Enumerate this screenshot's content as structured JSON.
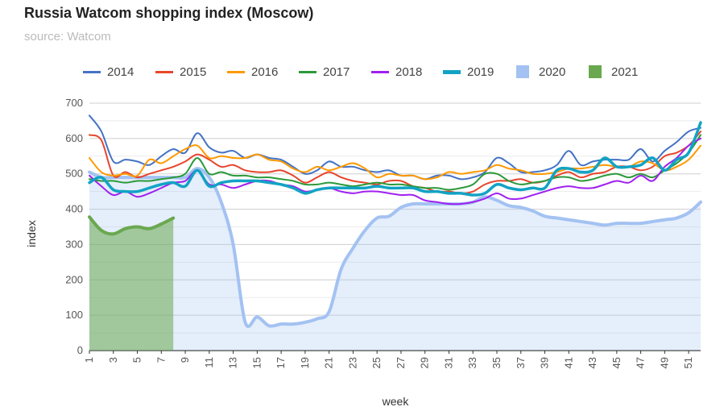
{
  "chart_data": {
    "type": "line",
    "title": "Russia Watcom shopping index (Moscow)",
    "subtitle": "source: Watcom",
    "xlabel": "week",
    "ylabel": "index",
    "xlim": [
      1,
      52
    ],
    "ylim": [
      0,
      700
    ],
    "yticks": [
      0,
      100,
      200,
      300,
      400,
      500,
      600,
      700
    ],
    "xticks": [
      1,
      3,
      5,
      7,
      9,
      11,
      13,
      15,
      17,
      19,
      21,
      23,
      25,
      27,
      29,
      31,
      33,
      35,
      37,
      39,
      41,
      43,
      45,
      47,
      49,
      51
    ],
    "grid": true,
    "legend_position": "top",
    "series": [
      {
        "name": "2014",
        "color": "#4472c4",
        "style": "line",
        "x": [
          1,
          2,
          3,
          4,
          5,
          6,
          7,
          8,
          9,
          10,
          11,
          12,
          13,
          14,
          15,
          16,
          17,
          18,
          19,
          20,
          21,
          22,
          23,
          24,
          25,
          26,
          27,
          28,
          29,
          30,
          31,
          32,
          33,
          34,
          35,
          36,
          37,
          38,
          39,
          40,
          41,
          42,
          43,
          44,
          45,
          46,
          47,
          48,
          49,
          50,
          51,
          52
        ],
        "y": [
          665,
          620,
          535,
          540,
          535,
          525,
          550,
          570,
          560,
          615,
          575,
          560,
          565,
          545,
          555,
          545,
          540,
          520,
          500,
          510,
          535,
          520,
          520,
          510,
          505,
          510,
          495,
          495,
          485,
          495,
          495,
          485,
          490,
          505,
          545,
          530,
          505,
          505,
          510,
          525,
          565,
          525,
          535,
          540,
          540,
          540,
          570,
          535,
          565,
          590,
          620,
          630
        ]
      },
      {
        "name": "2015",
        "color": "#e8452c",
        "style": "line",
        "x": [
          1,
          2,
          3,
          4,
          5,
          6,
          7,
          8,
          9,
          10,
          11,
          12,
          13,
          14,
          15,
          16,
          17,
          18,
          19,
          20,
          21,
          22,
          23,
          24,
          25,
          26,
          27,
          28,
          29,
          30,
          31,
          32,
          33,
          34,
          35,
          36,
          37,
          38,
          39,
          40,
          41,
          42,
          43,
          44,
          45,
          46,
          47,
          48,
          49,
          50,
          51,
          52
        ],
        "y": [
          610,
          595,
          495,
          505,
          490,
          500,
          510,
          520,
          535,
          555,
          540,
          520,
          525,
          510,
          505,
          505,
          510,
          495,
          475,
          490,
          505,
          490,
          480,
          475,
          470,
          480,
          480,
          465,
          460,
          450,
          450,
          445,
          450,
          470,
          480,
          480,
          485,
          475,
          480,
          495,
          505,
          490,
          500,
          505,
          520,
          520,
          510,
          520,
          550,
          560,
          580,
          620
        ]
      },
      {
        "name": "2016",
        "color": "#ff9900",
        "style": "line",
        "x": [
          1,
          2,
          3,
          4,
          5,
          6,
          7,
          8,
          9,
          10,
          11,
          12,
          13,
          14,
          15,
          16,
          17,
          18,
          19,
          20,
          21,
          22,
          23,
          24,
          25,
          26,
          27,
          28,
          29,
          30,
          31,
          32,
          33,
          34,
          35,
          36,
          37,
          38,
          39,
          40,
          41,
          42,
          43,
          44,
          45,
          46,
          47,
          48,
          49,
          50,
          51,
          52
        ],
        "y": [
          545,
          505,
          495,
          500,
          495,
          540,
          530,
          550,
          570,
          580,
          545,
          550,
          545,
          545,
          555,
          540,
          535,
          515,
          505,
          520,
          510,
          520,
          530,
          515,
          490,
          500,
          495,
          495,
          485,
          490,
          505,
          500,
          505,
          510,
          525,
          515,
          510,
          500,
          500,
          505,
          515,
          515,
          520,
          525,
          520,
          520,
          535,
          530,
          510,
          520,
          540,
          580
        ]
      },
      {
        "name": "2017",
        "color": "#2b9a3a",
        "style": "line",
        "x": [
          1,
          2,
          3,
          4,
          5,
          6,
          7,
          8,
          9,
          10,
          11,
          12,
          13,
          14,
          15,
          16,
          17,
          18,
          19,
          20,
          21,
          22,
          23,
          24,
          25,
          26,
          27,
          28,
          29,
          30,
          31,
          32,
          33,
          34,
          35,
          36,
          37,
          38,
          39,
          40,
          41,
          42,
          43,
          44,
          45,
          46,
          47,
          48,
          49,
          50,
          51,
          52
        ],
        "y": [
          485,
          480,
          480,
          475,
          480,
          480,
          485,
          490,
          500,
          545,
          500,
          505,
          495,
          495,
          490,
          490,
          485,
          480,
          470,
          470,
          475,
          470,
          465,
          470,
          475,
          470,
          470,
          465,
          460,
          460,
          455,
          460,
          470,
          500,
          500,
          480,
          470,
          475,
          480,
          490,
          490,
          480,
          485,
          495,
          500,
          490,
          500,
          490,
          510,
          530,
          560,
          610
        ]
      },
      {
        "name": "2018",
        "color": "#a020f0",
        "style": "line",
        "x": [
          1,
          2,
          3,
          4,
          5,
          6,
          7,
          8,
          9,
          10,
          11,
          12,
          13,
          14,
          15,
          16,
          17,
          18,
          19,
          20,
          21,
          22,
          23,
          24,
          25,
          26,
          27,
          28,
          29,
          30,
          31,
          32,
          33,
          34,
          35,
          36,
          37,
          38,
          39,
          40,
          41,
          42,
          43,
          44,
          45,
          46,
          47,
          48,
          49,
          50,
          51,
          52
        ],
        "y": [
          495,
          465,
          440,
          450,
          435,
          445,
          460,
          475,
          480,
          510,
          470,
          470,
          460,
          470,
          480,
          480,
          470,
          465,
          450,
          455,
          460,
          450,
          445,
          450,
          450,
          445,
          440,
          440,
          425,
          420,
          415,
          415,
          420,
          430,
          445,
          430,
          430,
          440,
          450,
          460,
          465,
          460,
          460,
          470,
          480,
          475,
          495,
          480,
          520,
          545,
          580,
          600
        ]
      },
      {
        "name": "2019",
        "color": "#12a3c4",
        "style": "thick-line",
        "x": [
          1,
          2,
          3,
          4,
          5,
          6,
          7,
          8,
          9,
          10,
          11,
          12,
          13,
          14,
          15,
          16,
          17,
          18,
          19,
          20,
          21,
          22,
          23,
          24,
          25,
          26,
          27,
          28,
          29,
          30,
          31,
          32,
          33,
          34,
          35,
          36,
          37,
          38,
          39,
          40,
          41,
          42,
          43,
          44,
          45,
          46,
          47,
          48,
          49,
          50,
          51,
          52
        ],
        "y": [
          475,
          490,
          455,
          450,
          450,
          460,
          470,
          475,
          465,
          510,
          465,
          475,
          480,
          480,
          480,
          475,
          470,
          460,
          445,
          455,
          460,
          460,
          460,
          460,
          465,
          460,
          460,
          460,
          450,
          450,
          445,
          445,
          440,
          445,
          470,
          460,
          455,
          460,
          460,
          510,
          515,
          505,
          510,
          545,
          520,
          520,
          525,
          545,
          510,
          540,
          560,
          645
        ]
      },
      {
        "name": "2020",
        "color": "#a3c2f2",
        "style": "thick-area",
        "x": [
          1,
          2,
          3,
          4,
          5,
          6,
          7,
          8,
          9,
          10,
          11,
          12,
          13,
          14,
          15,
          16,
          17,
          18,
          19,
          20,
          21,
          22,
          23,
          24,
          25,
          26,
          27,
          28,
          29,
          30,
          31,
          32,
          33,
          34,
          35,
          36,
          37,
          38,
          39,
          40,
          41,
          42,
          43,
          44,
          45,
          46,
          47,
          48,
          49,
          50,
          51,
          52
        ],
        "y": [
          505,
          490,
          490,
          490,
          490,
          490,
          490,
          490,
          490,
          515,
          490,
          420,
          300,
          80,
          95,
          70,
          75,
          75,
          80,
          90,
          110,
          230,
          290,
          340,
          375,
          380,
          405,
          415,
          415,
          415,
          415,
          415,
          420,
          435,
          425,
          410,
          405,
          395,
          380,
          375,
          370,
          365,
          360,
          355,
          360,
          360,
          360,
          365,
          370,
          375,
          390,
          420
        ]
      },
      {
        "name": "2021",
        "color": "#6aa84f",
        "style": "thick-area",
        "x": [
          1,
          2,
          3,
          4,
          5,
          6,
          7,
          8
        ],
        "y": [
          378,
          340,
          330,
          345,
          350,
          345,
          358,
          375
        ]
      }
    ]
  }
}
